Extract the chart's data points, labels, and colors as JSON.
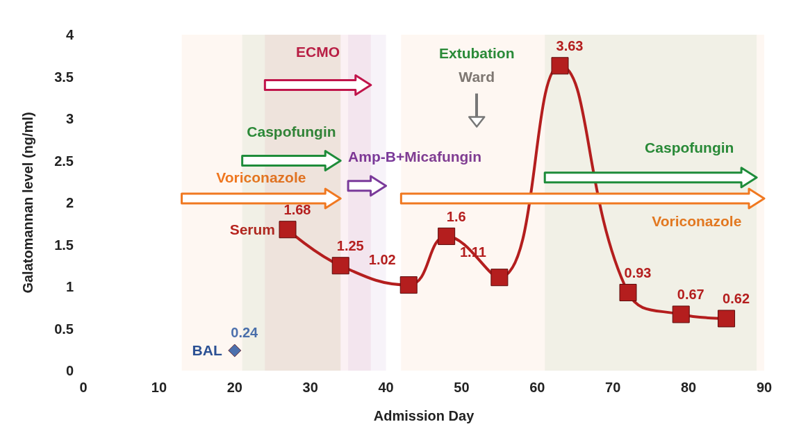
{
  "chart_data": {
    "type": "line",
    "xlabel": "Admission Day",
    "ylabel": "Galatomannan level (ng/ml)",
    "xlim": [
      0,
      90
    ],
    "xticks": [
      0,
      10,
      20,
      30,
      40,
      50,
      60,
      70,
      80,
      90
    ],
    "ylim": [
      0,
      4
    ],
    "yticks": [
      0,
      0.5,
      1,
      1.5,
      2,
      2.5,
      3,
      3.5,
      4
    ],
    "series": [
      {
        "name": "Serum",
        "color": "#b41e1e",
        "marker": "square",
        "x": [
          27,
          34,
          43,
          48,
          55,
          63,
          72,
          79,
          85
        ],
        "values": [
          1.68,
          1.25,
          1.02,
          1.6,
          1.11,
          3.63,
          0.93,
          0.67,
          0.62
        ]
      },
      {
        "name": "BAL",
        "type": "scatter",
        "color": "#1f4e9b",
        "marker": "diamond",
        "x": [
          20
        ],
        "values": [
          0.24
        ]
      }
    ],
    "data_labels": true,
    "grid": false,
    "legend": false,
    "bands": [
      {
        "axis": "x",
        "from": 24,
        "to": 38,
        "label": "ECMO",
        "color": "#c0144a"
      },
      {
        "axis": "x",
        "from": 21,
        "to": 34,
        "label": "Caspofungin",
        "color": "#1e8c3a"
      },
      {
        "axis": "x",
        "from": 13,
        "to": 34,
        "label": "Voriconazole",
        "color": "#f07820"
      },
      {
        "axis": "x",
        "from": 35,
        "to": 40,
        "label": "Amp-B+Micafungin",
        "color": "#7a3a9a"
      },
      {
        "axis": "x",
        "from": 42,
        "to": 90,
        "label": "Voriconazole",
        "color": "#f07820"
      },
      {
        "axis": "x",
        "from": 61,
        "to": 89,
        "label": "Caspofungin",
        "color": "#1e8c3a"
      }
    ],
    "ref_lines": [
      {
        "axis": "x",
        "value": 52,
        "label": "Ward",
        "color": "#777777"
      }
    ],
    "annotations": [
      "Extubation"
    ]
  }
}
